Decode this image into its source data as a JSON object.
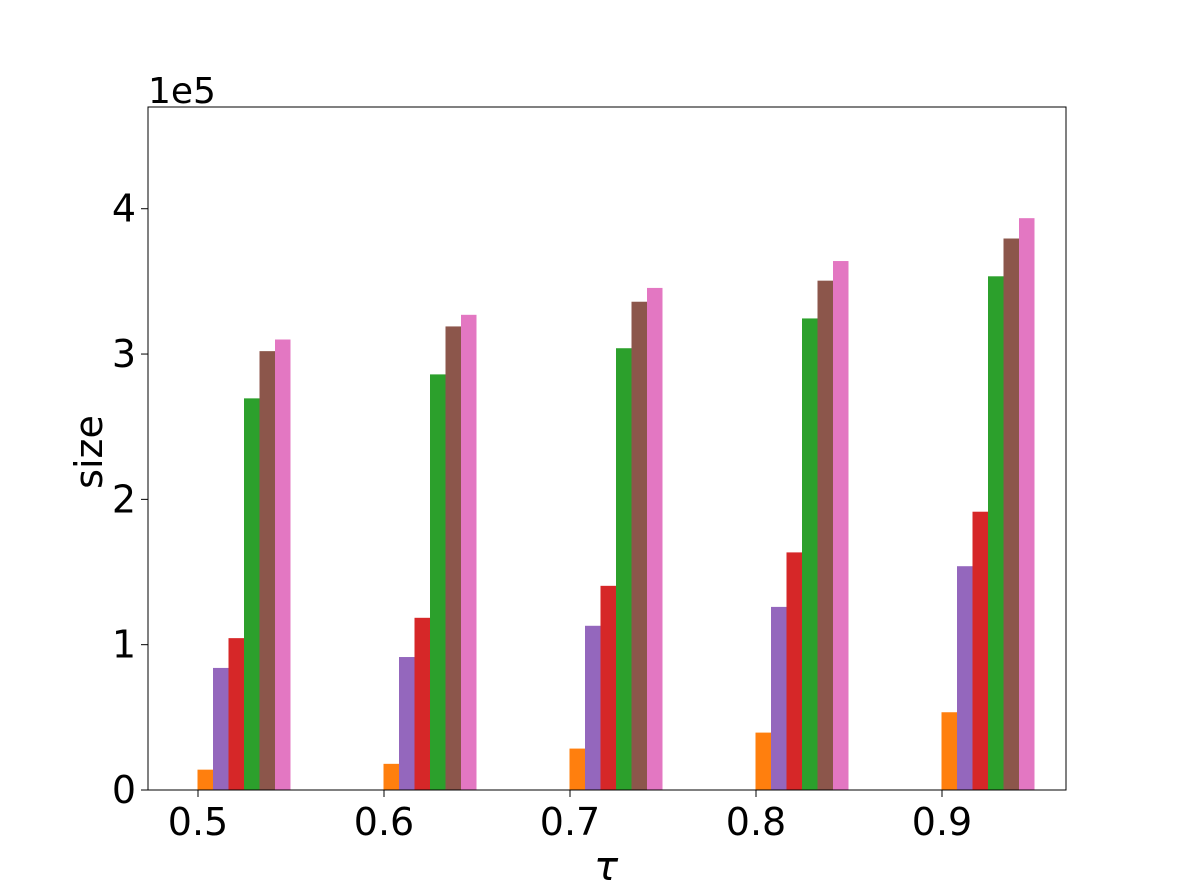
{
  "chart_data": {
    "type": "bar",
    "categories": [
      "0.5",
      "0.6",
      "0.7",
      "0.8",
      "0.9"
    ],
    "xlabel": "τ",
    "ylabel": "size",
    "y_offset_label": "1e5",
    "y_ticks": [
      "0",
      "1",
      "2",
      "3",
      "4"
    ],
    "ylim": [
      0,
      470000
    ],
    "grid": false,
    "legend": "none",
    "series": [
      {
        "color": "#ff7f0e",
        "values": [
          14000,
          18000,
          28500,
          39500,
          53500
        ]
      },
      {
        "color": "#9467bd",
        "values": [
          84000,
          91500,
          113000,
          126000,
          154000
        ]
      },
      {
        "color": "#d62728",
        "values": [
          104500,
          118500,
          140500,
          163500,
          191500
        ]
      },
      {
        "color": "#2ca02c",
        "values": [
          269500,
          286000,
          304000,
          324500,
          353500
        ]
      },
      {
        "color": "#8c564b",
        "values": [
          302000,
          319000,
          336000,
          350500,
          379500
        ]
      },
      {
        "color": "#e377c2",
        "values": [
          310000,
          327000,
          345500,
          364000,
          393500
        ]
      }
    ]
  }
}
